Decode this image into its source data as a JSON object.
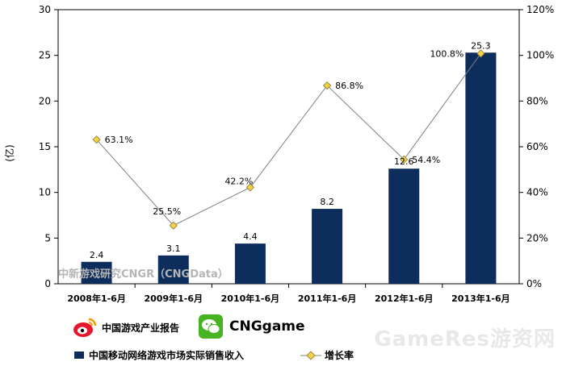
{
  "chart_data": {
    "type": "bar",
    "categories": [
      "2008年1-6月",
      "2009年1-6月",
      "2010年1-6月",
      "2011年1-6月",
      "2012年1-6月",
      "2013年1-6月"
    ],
    "series": [
      {
        "name": "中国移动网络游戏市场实际销售收入",
        "type": "bar",
        "axis": "left",
        "values": [
          2.4,
          3.1,
          4.4,
          8.2,
          12.6,
          25.3
        ],
        "labels": [
          "2.4",
          "3.1",
          "4.4",
          "8.2",
          "12.6",
          "25.3"
        ],
        "color": "#0d2d5c"
      },
      {
        "name": "增长率",
        "type": "line",
        "axis": "right",
        "values": [
          63.1,
          25.5,
          42.2,
          86.8,
          54.4,
          100.8
        ],
        "labels": [
          "63.1%",
          "25.5%",
          "42.2%",
          "86.8%",
          "54.4%",
          "100.8%"
        ],
        "color": "#808080",
        "marker_color": "#f2d04a"
      }
    ],
    "ylabel": "(亿)",
    "ylim": [
      0,
      30
    ],
    "y_ticks": [
      "0",
      "5",
      "10",
      "15",
      "20",
      "25",
      "30"
    ],
    "y2lim": [
      0,
      120
    ],
    "y2_ticks": [
      "0%",
      "20%",
      "40%",
      "60%",
      "80%",
      "100%",
      "120%"
    ],
    "grid": false,
    "legend_position": "bottom"
  },
  "watermark": "中新游戏研究CNGR（CNGData）",
  "branding": {
    "weibo_label": "中国游戏产业报告",
    "wechat_label": "CNGgame",
    "site_watermark": "GameRes游资网"
  },
  "legend": {
    "bar_label": "中国移动网络游戏市场实际销售收入",
    "line_label": "增长率"
  }
}
